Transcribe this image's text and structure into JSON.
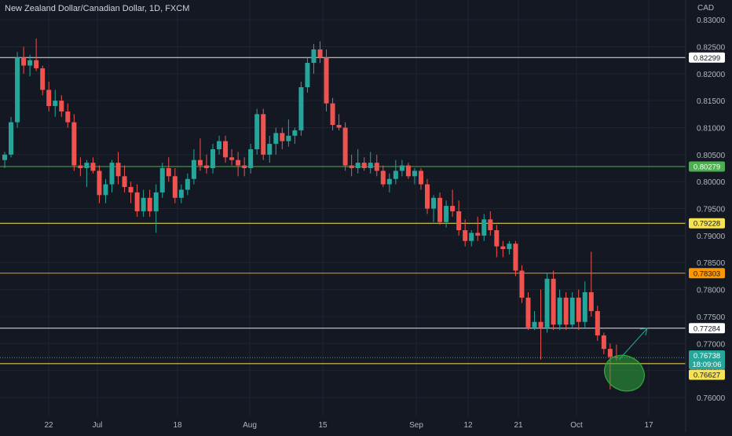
{
  "title": "New Zealand Dollar/Canadian Dollar, 1D, FXCM",
  "currency": "CAD",
  "colors": {
    "background": "#141823",
    "grid": "#1f2430",
    "up": "#26a69a",
    "down": "#ef5350",
    "axis_text": "#b2b5be",
    "white_line": "#e6e6e6",
    "green_line": "#4caf50",
    "yellow_line": "#f5e353",
    "orange_line": "#ff9800",
    "annotation": "#2eaa3a"
  },
  "chart_data": {
    "type": "candlestick",
    "ylim": [
      0.7565,
      0.8322
    ],
    "x_ticks": [
      "22",
      "Jul",
      "18",
      "Aug",
      "15",
      "Sep",
      "12",
      "21",
      "Oct",
      "17"
    ],
    "y_ticks": [
      "0.83000",
      "0.82500",
      "0.82000",
      "0.81500",
      "0.81000",
      "0.80500",
      "0.80000",
      "0.79500",
      "0.79000",
      "0.78500",
      "0.78000",
      "0.77500",
      "0.77000",
      "0.76500",
      "0.76000"
    ],
    "horizontal_levels": [
      {
        "value": 0.82299,
        "label": "0.82299",
        "style": "white"
      },
      {
        "value": 0.80279,
        "label": "0.80279",
        "style": "green"
      },
      {
        "value": 0.79228,
        "label": "0.79228",
        "style": "yellow"
      },
      {
        "value": 0.78303,
        "label": "0.78303",
        "style": "orange"
      },
      {
        "value": 0.77284,
        "label": "0.77284",
        "style": "white"
      },
      {
        "value": 0.76627,
        "label": "0.76627",
        "style": "yellow"
      }
    ],
    "current_price": {
      "value": 0.76738,
      "label": "0.76738",
      "countdown": "18:09:06"
    },
    "candles": [
      [
        0.804,
        0.8055,
        0.8025,
        0.805
      ],
      [
        0.805,
        0.812,
        0.8045,
        0.811
      ],
      [
        0.811,
        0.824,
        0.81,
        0.823
      ],
      [
        0.823,
        0.825,
        0.82,
        0.8215
      ],
      [
        0.8215,
        0.8235,
        0.8195,
        0.8225
      ],
      [
        0.8225,
        0.8265,
        0.8205,
        0.821
      ],
      [
        0.821,
        0.8215,
        0.816,
        0.817
      ],
      [
        0.817,
        0.8185,
        0.813,
        0.814
      ],
      [
        0.814,
        0.817,
        0.812,
        0.815
      ],
      [
        0.815,
        0.816,
        0.812,
        0.813
      ],
      [
        0.813,
        0.8145,
        0.81,
        0.811
      ],
      [
        0.811,
        0.8125,
        0.802,
        0.803
      ],
      [
        0.803,
        0.8045,
        0.801,
        0.8025
      ],
      [
        0.8025,
        0.804,
        0.799,
        0.8035
      ],
      [
        0.8035,
        0.8045,
        0.8015,
        0.802
      ],
      [
        0.802,
        0.803,
        0.796,
        0.7975
      ],
      [
        0.7975,
        0.8005,
        0.796,
        0.7995
      ],
      [
        0.7995,
        0.804,
        0.798,
        0.8035
      ],
      [
        0.8035,
        0.8055,
        0.7995,
        0.801
      ],
      [
        0.801,
        0.803,
        0.798,
        0.799
      ],
      [
        0.799,
        0.8,
        0.796,
        0.798
      ],
      [
        0.798,
        0.7995,
        0.7935,
        0.7945
      ],
      [
        0.7945,
        0.7985,
        0.7935,
        0.797
      ],
      [
        0.797,
        0.7985,
        0.7935,
        0.7945
      ],
      [
        0.7945,
        0.7995,
        0.7905,
        0.798
      ],
      [
        0.798,
        0.8035,
        0.797,
        0.8025
      ],
      [
        0.8025,
        0.8045,
        0.8,
        0.801
      ],
      [
        0.801,
        0.8025,
        0.796,
        0.797
      ],
      [
        0.797,
        0.7995,
        0.796,
        0.7985
      ],
      [
        0.7985,
        0.8015,
        0.7975,
        0.8005
      ],
      [
        0.8005,
        0.806,
        0.7995,
        0.804
      ],
      [
        0.804,
        0.808,
        0.802,
        0.803
      ],
      [
        0.803,
        0.805,
        0.8015,
        0.8025
      ],
      [
        0.8025,
        0.807,
        0.8015,
        0.806
      ],
      [
        0.806,
        0.8085,
        0.805,
        0.8075
      ],
      [
        0.8075,
        0.8085,
        0.8035,
        0.8045
      ],
      [
        0.8045,
        0.806,
        0.803,
        0.804
      ],
      [
        0.804,
        0.8055,
        0.801,
        0.803
      ],
      [
        0.803,
        0.8045,
        0.801,
        0.8025
      ],
      [
        0.8025,
        0.807,
        0.8015,
        0.806
      ],
      [
        0.806,
        0.8135,
        0.805,
        0.8125
      ],
      [
        0.8125,
        0.8135,
        0.804,
        0.805
      ],
      [
        0.805,
        0.8085,
        0.8035,
        0.807
      ],
      [
        0.807,
        0.81,
        0.805,
        0.809
      ],
      [
        0.809,
        0.81,
        0.806,
        0.8075
      ],
      [
        0.8075,
        0.8115,
        0.8065,
        0.8085
      ],
      [
        0.8085,
        0.81,
        0.807,
        0.8095
      ],
      [
        0.8095,
        0.8185,
        0.8085,
        0.8175
      ],
      [
        0.8175,
        0.823,
        0.8165,
        0.822
      ],
      [
        0.822,
        0.8255,
        0.82,
        0.8245
      ],
      [
        0.8245,
        0.826,
        0.822,
        0.823
      ],
      [
        0.823,
        0.8245,
        0.813,
        0.8145
      ],
      [
        0.8145,
        0.8155,
        0.8095,
        0.8105
      ],
      [
        0.8105,
        0.8125,
        0.8095,
        0.81
      ],
      [
        0.81,
        0.811,
        0.802,
        0.803
      ],
      [
        0.803,
        0.805,
        0.801,
        0.8025
      ],
      [
        0.8025,
        0.806,
        0.8015,
        0.8035
      ],
      [
        0.8035,
        0.8045,
        0.802,
        0.8025
      ],
      [
        0.8025,
        0.8055,
        0.8015,
        0.8035
      ],
      [
        0.8035,
        0.805,
        0.801,
        0.802
      ],
      [
        0.802,
        0.803,
        0.799,
        0.7995
      ],
      [
        0.7995,
        0.8015,
        0.798,
        0.8005
      ],
      [
        0.8005,
        0.804,
        0.7995,
        0.802
      ],
      [
        0.802,
        0.804,
        0.801,
        0.803
      ],
      [
        0.803,
        0.8035,
        0.8005,
        0.801
      ],
      [
        0.801,
        0.8025,
        0.7995,
        0.802
      ],
      [
        0.802,
        0.8025,
        0.7985,
        0.7995
      ],
      [
        0.7995,
        0.8005,
        0.794,
        0.795
      ],
      [
        0.795,
        0.7975,
        0.7925,
        0.797
      ],
      [
        0.797,
        0.798,
        0.792,
        0.7925
      ],
      [
        0.7925,
        0.7965,
        0.7915,
        0.7955
      ],
      [
        0.7955,
        0.7985,
        0.7935,
        0.7945
      ],
      [
        0.7945,
        0.7965,
        0.79,
        0.791
      ],
      [
        0.791,
        0.793,
        0.788,
        0.789
      ],
      [
        0.789,
        0.791,
        0.788,
        0.7905
      ],
      [
        0.7905,
        0.7935,
        0.789,
        0.79
      ],
      [
        0.79,
        0.794,
        0.789,
        0.793
      ],
      [
        0.793,
        0.7945,
        0.79,
        0.791
      ],
      [
        0.791,
        0.792,
        0.786,
        0.788
      ],
      [
        0.788,
        0.789,
        0.786,
        0.7875
      ],
      [
        0.7875,
        0.789,
        0.7865,
        0.7885
      ],
      [
        0.7885,
        0.789,
        0.7825,
        0.7835
      ],
      [
        0.7835,
        0.7845,
        0.7775,
        0.7785
      ],
      [
        0.7785,
        0.7795,
        0.7725,
        0.773
      ],
      [
        0.773,
        0.776,
        0.7725,
        0.774
      ],
      [
        0.774,
        0.78,
        0.767,
        0.773
      ],
      [
        0.773,
        0.783,
        0.772,
        0.782
      ],
      [
        0.782,
        0.7835,
        0.7725,
        0.7735
      ],
      [
        0.7735,
        0.78,
        0.7725,
        0.7785
      ],
      [
        0.7785,
        0.7795,
        0.7725,
        0.7735
      ],
      [
        0.7735,
        0.7795,
        0.773,
        0.7785
      ],
      [
        0.7785,
        0.78,
        0.7725,
        0.774
      ],
      [
        0.774,
        0.7815,
        0.773,
        0.7795
      ],
      [
        0.7795,
        0.787,
        0.775,
        0.776
      ],
      [
        0.776,
        0.777,
        0.7705,
        0.7715
      ],
      [
        0.7715,
        0.772,
        0.768,
        0.769
      ],
      [
        0.769,
        0.77,
        0.7615,
        0.7675
      ],
      [
        0.7675,
        0.7698,
        0.7668,
        0.7674
      ]
    ]
  }
}
